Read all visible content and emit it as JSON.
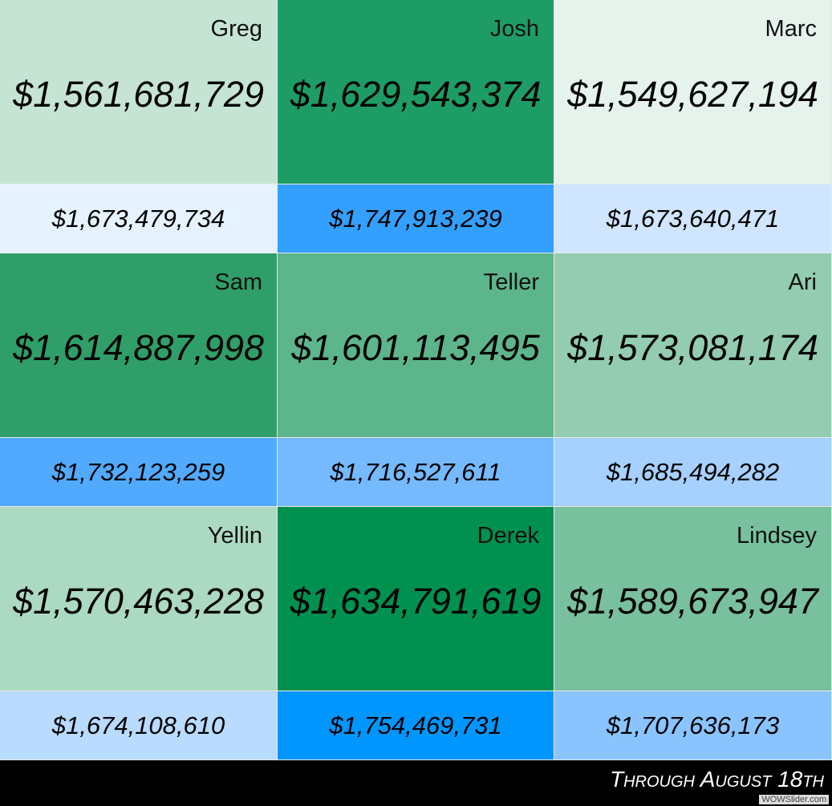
{
  "cells": [
    {
      "name": "Greg",
      "value": "$1,561,681,729",
      "sub_value": "$1,673,479,734"
    },
    {
      "name": "Josh",
      "value": "$1,629,543,374",
      "sub_value": "$1,747,913,239"
    },
    {
      "name": "Marc",
      "value": "$1,549,627,194",
      "sub_value": "$1,673,640,471"
    },
    {
      "name": "Sam",
      "value": "$1,614,887,998",
      "sub_value": "$1,732,123,259"
    },
    {
      "name": "Teller",
      "value": "$1,601,113,495",
      "sub_value": "$1,716,527,611"
    },
    {
      "name": "Ari",
      "value": "$1,573,081,174",
      "sub_value": "$1,685,494,282"
    },
    {
      "name": "Yellin",
      "value": "$1,570,463,228",
      "sub_value": "$1,674,108,610"
    },
    {
      "name": "Derek",
      "value": "$1,634,791,619",
      "sub_value": "$1,754,469,731"
    },
    {
      "name": "Lindsey",
      "value": "$1,589,673,947",
      "sub_value": "$1,707,636,173"
    }
  ],
  "footer": "Through August 18th",
  "watermark": "WOWSlider.com"
}
